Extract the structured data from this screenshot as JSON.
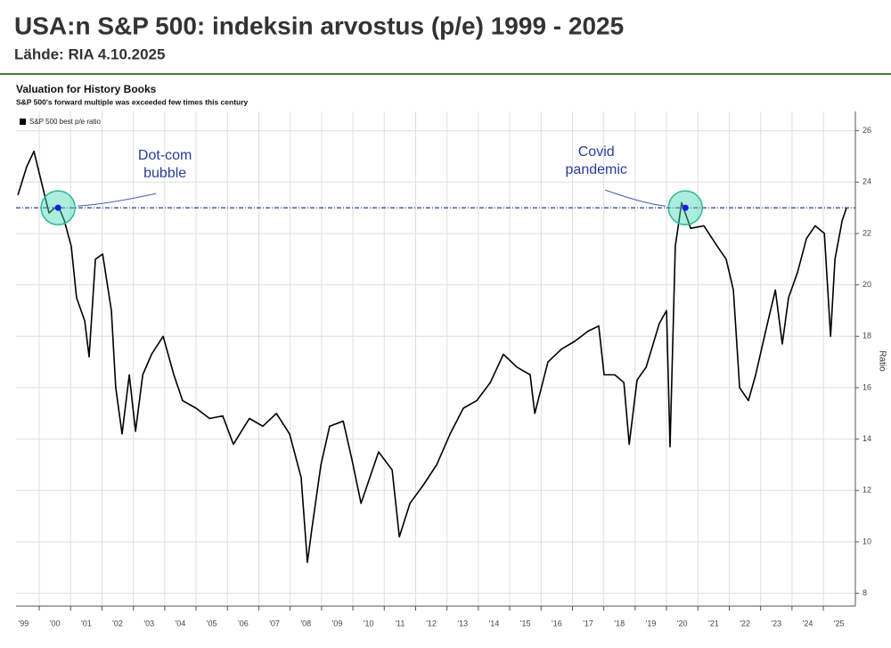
{
  "header": {
    "title": "USA:n S&P 500: indeksin arvostus (p/e) 1999 - 2025",
    "source": "Lähde: RIA 4.10.2025"
  },
  "chart_data": {
    "type": "line",
    "title": "Valuation for History Books",
    "subtitle": "S&P 500's forward multiple was exceeded few times this century",
    "y_label": "Ratio",
    "x": [
      1999.32,
      1999.6,
      1999.83,
      2000.03,
      2000.31,
      2000.6,
      2000.8,
      2001.02,
      2001.19,
      2001.45,
      2001.59,
      2001.79,
      2002.02,
      2002.3,
      2002.44,
      2002.64,
      2002.87,
      2003.07,
      2003.3,
      2003.58,
      2003.95,
      2004.29,
      2004.57,
      2005.0,
      2005.43,
      2005.85,
      2006.19,
      2006.7,
      2007.13,
      2007.56,
      2007.98,
      2008.35,
      2008.55,
      2008.69,
      2008.98,
      2009.26,
      2009.69,
      2009.97,
      2010.26,
      2010.54,
      2010.82,
      2011.25,
      2011.48,
      2011.82,
      2012.24,
      2012.67,
      2013.1,
      2013.52,
      2013.95,
      2014.38,
      2014.8,
      2015.23,
      2015.65,
      2015.8,
      2016.22,
      2016.65,
      2017.07,
      2017.5,
      2017.84,
      2018.01,
      2018.35,
      2018.64,
      2018.81,
      2019.06,
      2019.35,
      2019.77,
      2020.0,
      2020.11,
      2020.28,
      2020.48,
      2020.77,
      2021.19,
      2021.62,
      2021.9,
      2022.13,
      2022.33,
      2022.61,
      2022.84,
      2023.18,
      2023.47,
      2023.69,
      2023.89,
      2024.18,
      2024.46,
      2024.74,
      2025.03,
      2025.23,
      2025.37,
      2025.6,
      2025.74
    ],
    "series": [
      {
        "name": "S&P 500 best p/e ratio",
        "color": "#000000",
        "values": [
          23.5,
          24.6,
          25.2,
          24.2,
          22.8,
          23.1,
          22.5,
          21.5,
          19.5,
          18.6,
          17.2,
          21,
          21.2,
          19,
          16,
          14.2,
          16.5,
          14.3,
          16.5,
          17.3,
          18,
          16.5,
          15.5,
          15.2,
          14.8,
          14.9,
          13.8,
          14.8,
          14.5,
          15,
          14.2,
          12.5,
          9.2,
          10.5,
          13,
          14.5,
          14.7,
          13.2,
          11.5,
          12.5,
          13.5,
          12.8,
          10.2,
          11.5,
          12.2,
          13,
          14.2,
          15.2,
          15.5,
          16.2,
          17.3,
          16.8,
          16.5,
          15,
          17,
          17.5,
          17.8,
          18.2,
          18.4,
          16.5,
          16.5,
          16.2,
          13.8,
          16.3,
          16.8,
          18.5,
          19,
          13.7,
          21.5,
          23.2,
          22.2,
          22.3,
          21.5,
          21,
          19.8,
          16,
          15.5,
          16.5,
          18.3,
          19.8,
          17.7,
          19.5,
          20.5,
          21.8,
          22.3,
          22,
          18,
          21,
          22.5,
          23
        ]
      }
    ],
    "reference_line": 23,
    "annotations": [
      {
        "text": "Dot-com bubble",
        "x": 2000.6,
        "y": 23
      },
      {
        "text": "Covid pandemic",
        "x": 2020.6,
        "y": 23
      }
    ],
    "xlim": [
      1999.26,
      2026.02
    ],
    "ylim": [
      7.5,
      26.75
    ],
    "xticks": [
      {
        "value": 1999,
        "label": "'99"
      },
      {
        "value": 2000,
        "label": "'00"
      },
      {
        "value": 2001,
        "label": "'01"
      },
      {
        "value": 2002,
        "label": "'02"
      },
      {
        "value": 2003,
        "label": "'03"
      },
      {
        "value": 2004,
        "label": "'04"
      },
      {
        "value": 2005,
        "label": "'05"
      },
      {
        "value": 2006,
        "label": "'06"
      },
      {
        "value": 2007,
        "label": "'07"
      },
      {
        "value": 2008,
        "label": "'08"
      },
      {
        "value": 2009,
        "label": "'09"
      },
      {
        "value": 2010,
        "label": "'10"
      },
      {
        "value": 2011,
        "label": "'11"
      },
      {
        "value": 2012,
        "label": "'12"
      },
      {
        "value": 2013,
        "label": "'13"
      },
      {
        "value": 2014,
        "label": "'14"
      },
      {
        "value": 2015,
        "label": "'15"
      },
      {
        "value": 2016,
        "label": "'16"
      },
      {
        "value": 2017,
        "label": "'17"
      },
      {
        "value": 2018,
        "label": "'18"
      },
      {
        "value": 2019,
        "label": "'19"
      },
      {
        "value": 2020,
        "label": "'20"
      },
      {
        "value": 2021,
        "label": "'21"
      },
      {
        "value": 2022,
        "label": "'22"
      },
      {
        "value": 2023,
        "label": "'23"
      },
      {
        "value": 2024,
        "label": "'24"
      },
      {
        "value": 2025,
        "label": "'25"
      }
    ],
    "yticks": [
      8,
      10,
      12,
      14,
      16,
      18,
      20,
      22,
      24,
      26
    ],
    "grid": true
  }
}
